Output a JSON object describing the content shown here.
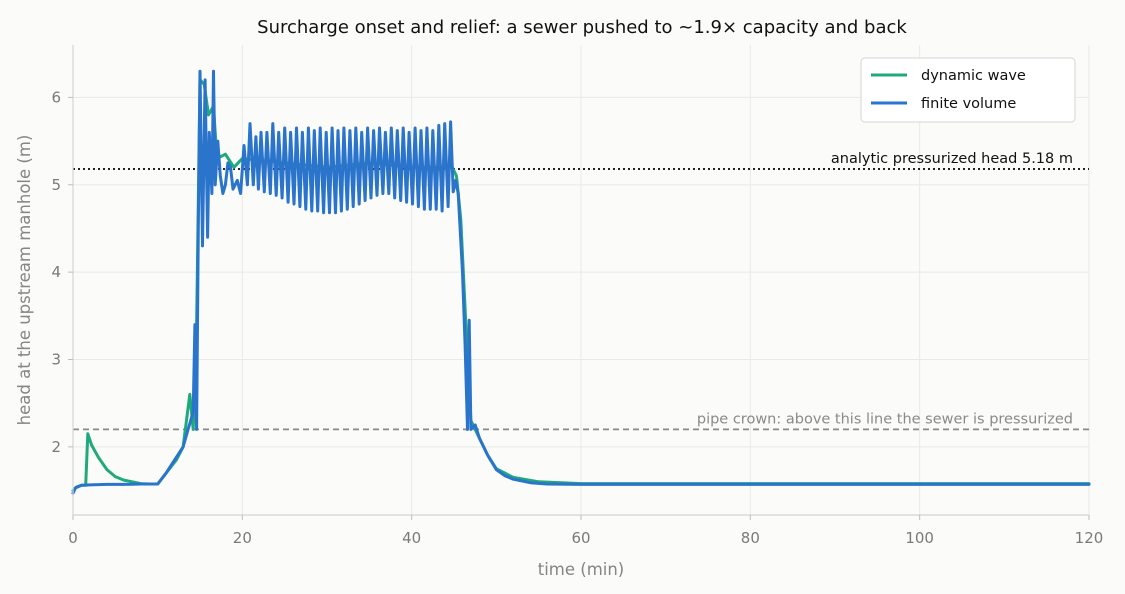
{
  "chart_data": {
    "type": "line",
    "title": "Surcharge onset and relief: a sewer pushed to ~1.9× capacity and back",
    "xlabel": "time (min)",
    "ylabel": "head at the upstream manhole (m)",
    "xlim": [
      0,
      120
    ],
    "ylim": [
      1.22,
      6.6
    ],
    "xticks": [
      0,
      20,
      40,
      60,
      80,
      100,
      120
    ],
    "yticks": [
      2,
      3,
      4,
      5,
      6
    ],
    "grid": true,
    "legend_position": "top-right",
    "series": [
      {
        "name": "dynamic wave",
        "color": "#1fa97c",
        "points": [
          [
            0,
            1.5
          ],
          [
            0.4,
            1.54
          ],
          [
            1,
            1.56
          ],
          [
            1.5,
            1.56
          ],
          [
            1.75,
            2.15
          ],
          [
            2.2,
            2.02
          ],
          [
            3,
            1.88
          ],
          [
            4,
            1.74
          ],
          [
            5,
            1.66
          ],
          [
            6,
            1.62
          ],
          [
            7,
            1.6
          ],
          [
            8,
            1.58
          ],
          [
            9,
            1.575
          ],
          [
            10,
            1.575
          ],
          [
            12.2,
            1.85
          ],
          [
            13,
            2.0
          ],
          [
            13.8,
            2.6
          ],
          [
            14.2,
            2.2
          ],
          [
            14.6,
            3.4
          ],
          [
            15,
            6.2
          ],
          [
            15.5,
            6.15
          ],
          [
            16,
            5.8
          ],
          [
            16.6,
            5.9
          ],
          [
            17,
            5.3
          ],
          [
            18,
            5.35
          ],
          [
            19,
            5.2
          ],
          [
            20,
            5.3
          ],
          [
            25,
            5.25
          ],
          [
            30,
            5.2
          ],
          [
            35,
            5.25
          ],
          [
            40,
            5.2
          ],
          [
            43,
            5.2
          ],
          [
            44.8,
            5.2
          ],
          [
            45.3,
            5.1
          ],
          [
            45.8,
            4.6
          ],
          [
            46.5,
            3.2
          ],
          [
            47,
            2.3
          ],
          [
            47.5,
            2.2
          ],
          [
            48,
            2.1
          ],
          [
            49,
            1.9
          ],
          [
            50,
            1.75
          ],
          [
            52,
            1.65
          ],
          [
            55,
            1.6
          ],
          [
            60,
            1.58
          ],
          [
            120,
            1.58
          ]
        ]
      },
      {
        "name": "finite volume",
        "color": "#2a74cc",
        "points": [
          [
            0,
            1.47
          ],
          [
            0.3,
            1.53
          ],
          [
            1,
            1.56
          ],
          [
            2,
            1.565
          ],
          [
            4,
            1.57
          ],
          [
            6,
            1.57
          ],
          [
            8,
            1.575
          ],
          [
            10,
            1.575
          ],
          [
            11,
            1.7
          ],
          [
            12,
            1.85
          ],
          [
            13,
            2.0
          ],
          [
            13.6,
            2.2
          ],
          [
            14.2,
            2.4
          ],
          [
            14.4,
            3.4
          ],
          [
            14.6,
            2.2
          ],
          [
            14.8,
            4.5
          ],
          [
            15,
            6.3
          ],
          [
            15.3,
            4.3
          ],
          [
            15.6,
            6.2
          ],
          [
            15.9,
            4.4
          ],
          [
            16.1,
            5.6
          ],
          [
            16.4,
            4.9
          ],
          [
            16.6,
            6.3
          ],
          [
            16.8,
            5.0
          ],
          [
            17.1,
            5.5
          ],
          [
            17.4,
            5.1
          ],
          [
            17.7,
            4.9
          ],
          [
            18,
            5.0
          ],
          [
            18.3,
            5.25
          ],
          [
            18.6,
            5.2
          ],
          [
            18.9,
            4.95
          ],
          [
            19.4,
            5.05
          ],
          [
            19.8,
            4.9
          ],
          [
            20.2,
            5.45
          ],
          [
            20.6,
            5.0
          ],
          [
            20.9,
            5.7
          ],
          [
            21.3,
            5.0
          ],
          [
            21.6,
            5.55
          ],
          [
            21.9,
            4.95
          ],
          [
            22.2,
            5.6
          ],
          [
            22.6,
            4.92
          ],
          [
            22.9,
            5.6
          ],
          [
            23.3,
            4.9
          ],
          [
            23.6,
            5.7
          ],
          [
            24.0,
            4.88
          ],
          [
            24.3,
            5.6
          ],
          [
            24.7,
            4.85
          ],
          [
            25.0,
            5.65
          ],
          [
            25.4,
            4.8
          ],
          [
            25.7,
            5.6
          ],
          [
            26.1,
            4.78
          ],
          [
            26.4,
            5.65
          ],
          [
            26.8,
            4.75
          ],
          [
            27.1,
            5.6
          ],
          [
            27.5,
            4.72
          ],
          [
            27.8,
            5.65
          ],
          [
            28.2,
            4.7
          ],
          [
            28.5,
            5.62
          ],
          [
            28.9,
            4.7
          ],
          [
            29.2,
            5.65
          ],
          [
            29.6,
            4.68
          ],
          [
            29.9,
            5.6
          ],
          [
            30.3,
            4.68
          ],
          [
            30.6,
            5.65
          ],
          [
            31.0,
            4.68
          ],
          [
            31.3,
            5.62
          ],
          [
            31.7,
            4.7
          ],
          [
            32.0,
            5.65
          ],
          [
            32.4,
            4.72
          ],
          [
            32.7,
            5.62
          ],
          [
            33.1,
            4.75
          ],
          [
            33.4,
            5.65
          ],
          [
            33.8,
            4.78
          ],
          [
            34.1,
            5.6
          ],
          [
            34.5,
            4.82
          ],
          [
            34.8,
            5.65
          ],
          [
            35.2,
            4.85
          ],
          [
            35.5,
            5.62
          ],
          [
            35.9,
            4.88
          ],
          [
            36.2,
            5.65
          ],
          [
            36.6,
            4.9
          ],
          [
            36.9,
            5.6
          ],
          [
            37.3,
            4.9
          ],
          [
            37.6,
            5.65
          ],
          [
            38.0,
            4.85
          ],
          [
            38.3,
            5.62
          ],
          [
            38.7,
            4.82
          ],
          [
            39.0,
            5.65
          ],
          [
            39.4,
            4.8
          ],
          [
            39.7,
            5.6
          ],
          [
            40.1,
            4.78
          ],
          [
            40.4,
            5.65
          ],
          [
            40.8,
            4.75
          ],
          [
            41.1,
            5.62
          ],
          [
            41.5,
            4.72
          ],
          [
            41.8,
            5.65
          ],
          [
            42.2,
            4.72
          ],
          [
            42.5,
            5.62
          ],
          [
            42.9,
            4.72
          ],
          [
            43.2,
            5.68
          ],
          [
            43.6,
            4.7
          ],
          [
            43.9,
            5.7
          ],
          [
            44.3,
            4.75
          ],
          [
            44.6,
            5.72
          ],
          [
            44.9,
            4.92
          ],
          [
            45.2,
            5.05
          ],
          [
            45.5,
            4.9
          ],
          [
            46.0,
            4.0
          ],
          [
            46.3,
            3.2
          ],
          [
            46.6,
            2.2
          ],
          [
            46.8,
            3.45
          ],
          [
            47.0,
            2.2
          ],
          [
            47.5,
            2.25
          ],
          [
            48,
            2.1
          ],
          [
            49,
            1.9
          ],
          [
            50,
            1.74
          ],
          [
            51,
            1.67
          ],
          [
            52,
            1.63
          ],
          [
            54,
            1.59
          ],
          [
            56,
            1.575
          ],
          [
            60,
            1.57
          ],
          [
            120,
            1.57
          ]
        ]
      }
    ],
    "reference_lines": [
      {
        "y": 5.18,
        "label": "analytic pressurized head 5.18 m",
        "style": "dotted",
        "color": "#222222"
      },
      {
        "y": 2.2,
        "label": "pipe crown: above this line the sewer is pressurized",
        "style": "dashed",
        "color": "#8a8a8a"
      }
    ]
  }
}
